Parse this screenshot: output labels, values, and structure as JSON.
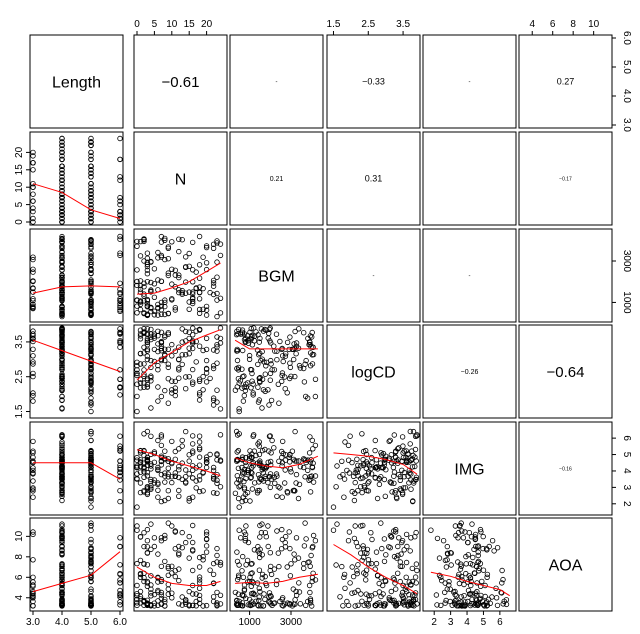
{
  "chart_data": {
    "type": "scatter",
    "title": "",
    "variables": [
      "Length",
      "N",
      "BGM",
      "logCD",
      "IMG",
      "AOA"
    ],
    "ranges": {
      "Length": [
        3,
        6
      ],
      "N": [
        0,
        25
      ],
      "BGM": [
        200,
        4400
      ],
      "logCD": [
        1.4,
        3.9
      ],
      "IMG": [
        1.5,
        6.8
      ],
      "AOA": [
        3,
        11.5
      ]
    },
    "axis_ticks": {
      "Length": {
        "values": [
          3,
          4,
          5,
          6
        ],
        "labels": [
          "3.0",
          "4.0",
          "5.0",
          "6.0"
        ]
      },
      "N": {
        "values": [
          0,
          5,
          10,
          15,
          20
        ],
        "labels": [
          "0",
          "5",
          "10",
          "15",
          "20"
        ]
      },
      "BGM": {
        "values": [
          1000,
          3000
        ],
        "labels": [
          "1000",
          "3000"
        ]
      },
      "logCD": {
        "values": [
          1.5,
          2.5,
          3.5
        ],
        "labels": [
          "1.5",
          "2.5",
          "3.5"
        ]
      },
      "IMG": {
        "values": [
          2,
          3,
          4,
          5,
          6
        ],
        "labels": [
          "2",
          "3",
          "4",
          "5",
          "6"
        ]
      },
      "AOA": {
        "values": [
          4,
          6,
          8,
          10
        ],
        "labels": [
          "4",
          "6",
          "8",
          "10"
        ]
      },
      "left_N": {
        "values": [
          0,
          5,
          10,
          15,
          20
        ],
        "labels": [
          "0",
          "5",
          "10",
          "15",
          "20"
        ]
      },
      "left_logCD": {
        "values": [
          1.5,
          2.5,
          3.5
        ],
        "labels": [
          "1.5",
          "2.5",
          "3.5"
        ]
      },
      "left_AOA": {
        "values": [
          4,
          6,
          8,
          10
        ],
        "labels": [
          "4",
          "6",
          "8",
          "10"
        ]
      },
      "right_Length": {
        "values": [
          3,
          4,
          5,
          6
        ],
        "labels": [
          "3.0",
          "4.0",
          "5.0",
          "6.0"
        ]
      },
      "right_BGM": {
        "values": [
          1000,
          3000
        ],
        "labels": [
          "1000",
          "3000"
        ]
      },
      "right_IMG": {
        "values": [
          2,
          3,
          4,
          5,
          6
        ],
        "labels": [
          "2",
          "3",
          "4",
          "5",
          "6"
        ]
      }
    },
    "correlations": [
      {
        "row": 0,
        "col": 1,
        "label": "−0.61",
        "r": -0.61,
        "size": "large"
      },
      {
        "row": 0,
        "col": 2,
        "label": "-",
        "r": 0.0,
        "size": "dash"
      },
      {
        "row": 0,
        "col": 3,
        "label": "−0.33",
        "r": -0.33,
        "size": "small"
      },
      {
        "row": 0,
        "col": 4,
        "label": "-",
        "r": 0.0,
        "size": "dash"
      },
      {
        "row": 0,
        "col": 5,
        "label": "0.27",
        "r": 0.27,
        "size": "small"
      },
      {
        "row": 1,
        "col": 2,
        "label": "0.21",
        "r": 0.21,
        "size": "tiny"
      },
      {
        "row": 1,
        "col": 3,
        "label": "0.31",
        "r": 0.31,
        "size": "small"
      },
      {
        "row": 1,
        "col": 4,
        "label": "",
        "r": 0.0,
        "size": "dash"
      },
      {
        "row": 1,
        "col": 5,
        "label": "−0.17",
        "r": -0.17,
        "size": "micro"
      },
      {
        "row": 2,
        "col": 3,
        "label": "-",
        "r": 0.0,
        "size": "dash"
      },
      {
        "row": 2,
        "col": 4,
        "label": "-",
        "r": 0.0,
        "size": "dash"
      },
      {
        "row": 2,
        "col": 5,
        "label": "",
        "r": 0.0,
        "size": "dash"
      },
      {
        "row": 3,
        "col": 4,
        "label": "−0.26",
        "r": -0.26,
        "size": "tiny"
      },
      {
        "row": 3,
        "col": 5,
        "label": "−0.64",
        "r": -0.64,
        "size": "large"
      },
      {
        "row": 4,
        "col": 5,
        "label": "−0.16",
        "r": -0.16,
        "size": "micro"
      }
    ],
    "sample_points": [
      {
        "Length": 3,
        "N": 15,
        "BGM": 1500,
        "logCD": 3.6,
        "IMG": 4.6,
        "AOA": 4.6
      },
      {
        "Length": 3,
        "N": 10,
        "BGM": 2600,
        "logCD": 3.1,
        "IMG": 5.8,
        "AOA": 4.0
      },
      {
        "Length": 3,
        "N": 6,
        "BGM": 700,
        "logCD": 1.8,
        "IMG": 2.4,
        "AOA": 6.0
      },
      {
        "Length": 4,
        "N": 24,
        "BGM": 1200,
        "logCD": 3.9,
        "IMG": 6.2,
        "AOA": 3.4
      },
      {
        "Length": 4,
        "N": 16,
        "BGM": 3900,
        "logCD": 3.5,
        "IMG": 5.1,
        "AOA": 5.2
      },
      {
        "Length": 4,
        "N": 12,
        "BGM": 2200,
        "logCD": 2.7,
        "IMG": 3.6,
        "AOA": 6.8
      },
      {
        "Length": 4,
        "N": 8,
        "BGM": 800,
        "logCD": 2.1,
        "IMG": 2.2,
        "AOA": 9.8
      },
      {
        "Length": 4,
        "N": 4,
        "BGM": 1600,
        "logCD": 1.6,
        "IMG": 4.3,
        "AOA": 11.2
      },
      {
        "Length": 5,
        "N": 14,
        "BGM": 3200,
        "logCD": 3.8,
        "IMG": 6.4,
        "AOA": 3.8
      },
      {
        "Length": 5,
        "N": 7,
        "BGM": 1000,
        "logCD": 3.0,
        "IMG": 4.9,
        "AOA": 5.6
      },
      {
        "Length": 5,
        "N": 3,
        "BGM": 2000,
        "logCD": 2.4,
        "IMG": 3.0,
        "AOA": 8.4
      },
      {
        "Length": 5,
        "N": 0,
        "BGM": 500,
        "logCD": 1.5,
        "IMG": 1.8,
        "AOA": 10.6
      },
      {
        "Length": 6,
        "N": 2,
        "BGM": 1400,
        "logCD": 2.2,
        "IMG": 2.8,
        "AOA": 9.0
      },
      {
        "Length": 6,
        "N": 0,
        "BGM": 1100,
        "logCD": 2.7,
        "IMG": 4.2,
        "AOA": 4.4
      }
    ],
    "smooth_lines": [
      {
        "row": 1,
        "col": 0,
        "x": [
          3,
          4,
          5,
          6
        ],
        "y": [
          11,
          8.5,
          3.5,
          1
        ]
      },
      {
        "row": 2,
        "col": 0,
        "x": [
          3,
          4,
          5,
          6
        ],
        "y": [
          1450,
          1750,
          1800,
          1750
        ]
      },
      {
        "row": 3,
        "col": 0,
        "x": [
          3,
          4,
          5,
          6
        ],
        "y": [
          3.55,
          3.25,
          2.95,
          2.65
        ]
      },
      {
        "row": 4,
        "col": 0,
        "x": [
          3,
          4,
          5,
          6
        ],
        "y": [
          4.5,
          4.5,
          4.5,
          3.5
        ]
      },
      {
        "row": 5,
        "col": 0,
        "x": [
          3,
          4,
          5,
          6
        ],
        "y": [
          4.6,
          5.4,
          6.2,
          8.5
        ]
      },
      {
        "row": 2,
        "col": 1,
        "x": [
          0,
          5,
          10,
          15,
          20,
          24
        ],
        "y": [
          1400,
          1450,
          1700,
          2000,
          2500,
          2900
        ]
      },
      {
        "row": 3,
        "col": 1,
        "x": [
          0,
          5,
          10,
          15,
          20,
          24
        ],
        "y": [
          2.4,
          2.9,
          3.2,
          3.5,
          3.7,
          3.85
        ]
      },
      {
        "row": 4,
        "col": 1,
        "x": [
          0,
          5,
          10,
          15,
          20,
          24
        ],
        "y": [
          5.3,
          5.0,
          4.6,
          4.3,
          4.0,
          3.7
        ]
      },
      {
        "row": 5,
        "col": 1,
        "x": [
          0,
          5,
          10,
          15,
          20,
          24
        ],
        "y": [
          7.0,
          6.0,
          5.4,
          5.2,
          5.2,
          5.6
        ]
      },
      {
        "row": 3,
        "col": 2,
        "x": [
          300,
          1000,
          1800,
          2600,
          3400,
          4300
        ],
        "y": [
          3.55,
          3.3,
          3.3,
          3.3,
          3.3,
          3.3
        ]
      },
      {
        "row": 4,
        "col": 2,
        "x": [
          300,
          1000,
          1800,
          2600,
          3400,
          4300
        ],
        "y": [
          4.8,
          4.5,
          4.3,
          4.2,
          4.4,
          4.9
        ]
      },
      {
        "row": 5,
        "col": 2,
        "x": [
          300,
          1000,
          1800,
          2600,
          3400,
          4300
        ],
        "y": [
          5.4,
          5.5,
          5.4,
          5.6,
          6.0,
          6.3
        ]
      },
      {
        "row": 4,
        "col": 3,
        "x": [
          1.5,
          2.0,
          2.5,
          3.0,
          3.5,
          3.9
        ],
        "y": [
          5.1,
          5.0,
          4.9,
          4.7,
          4.4,
          3.8
        ]
      },
      {
        "row": 5,
        "col": 3,
        "x": [
          1.5,
          2.0,
          2.5,
          3.0,
          3.5,
          3.9
        ],
        "y": [
          9.2,
          8.2,
          7.0,
          6.0,
          5.2,
          4.4
        ]
      },
      {
        "row": 5,
        "col": 4,
        "x": [
          1.8,
          3,
          4,
          5,
          6,
          6.6
        ],
        "y": [
          6.5,
          6.1,
          5.6,
          5.2,
          4.8,
          4.2
        ]
      }
    ]
  }
}
